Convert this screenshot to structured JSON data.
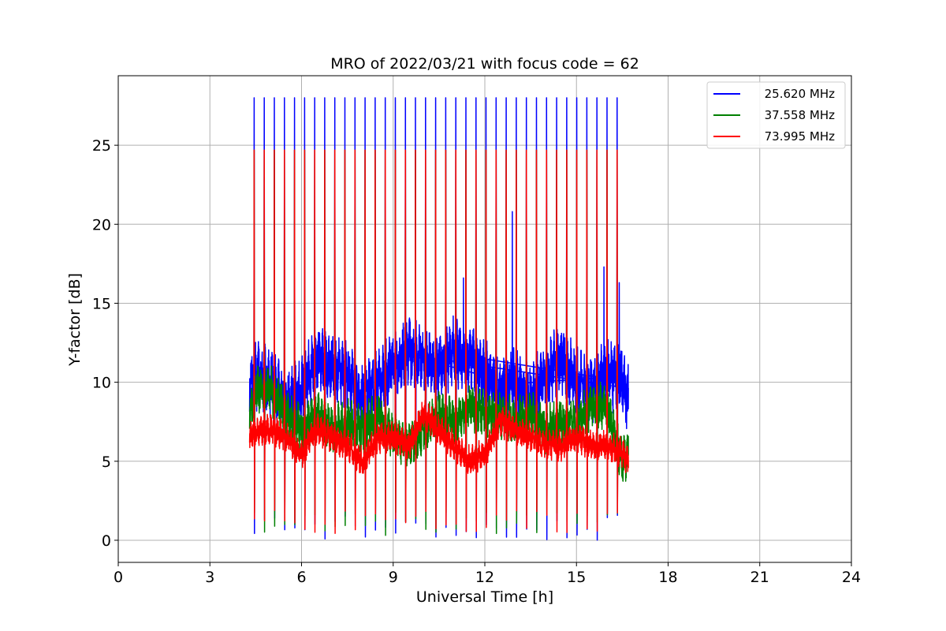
{
  "chart_data": {
    "type": "line",
    "title": "MRO of 2022/03/21 with focus code = 62",
    "xlabel": "Universal Time [h]",
    "ylabel": "Y-factor [dB]",
    "xlim": [
      0,
      24
    ],
    "ylim": [
      -1.4,
      29.4
    ],
    "xticks": [
      0,
      3,
      6,
      9,
      12,
      15,
      18,
      21,
      24
    ],
    "yticks": [
      0,
      5,
      10,
      15,
      20,
      25
    ],
    "grid": true,
    "legend_position": "top-right",
    "series": [
      {
        "name": "25.620 MHz",
        "color": "#0000ff",
        "x_range": [
          4.3,
          16.7
        ],
        "baseline": [
          [
            4.3,
            9.5
          ],
          [
            4.5,
            10.5
          ],
          [
            5.0,
            10.0
          ],
          [
            5.5,
            8.5
          ],
          [
            6.0,
            9.5
          ],
          [
            6.5,
            11.5
          ],
          [
            7.0,
            11.0
          ],
          [
            7.5,
            10.5
          ],
          [
            8.0,
            9.0
          ],
          [
            8.5,
            10.0
          ],
          [
            9.0,
            11.0
          ],
          [
            9.5,
            12.0
          ],
          [
            10.0,
            11.5
          ],
          [
            10.5,
            11.0
          ],
          [
            11.0,
            12.0
          ],
          [
            11.5,
            11.5
          ],
          [
            12.0,
            10.5
          ],
          [
            12.5,
            9.5
          ],
          [
            13.0,
            10.0
          ],
          [
            13.5,
            9.0
          ],
          [
            14.0,
            10.5
          ],
          [
            14.5,
            11.5
          ],
          [
            15.0,
            10.0
          ],
          [
            15.5,
            9.5
          ],
          [
            16.0,
            10.5
          ],
          [
            16.5,
            10.0
          ],
          [
            16.7,
            9.0
          ]
        ],
        "noise_amplitude": 2.0,
        "spike_peak": 28.0,
        "spike_min": 0.0,
        "spike_start": 4.45,
        "spike_interval": 0.33,
        "spike_count": 37,
        "extra_peaks": [
          [
            9.4,
            17.8
          ],
          [
            12.9,
            20.8
          ],
          [
            15.9,
            17.3
          ],
          [
            16.4,
            16.3
          ],
          [
            11.3,
            16.6
          ]
        ]
      },
      {
        "name": "37.558 MHz",
        "color": "#008000",
        "x_range": [
          4.3,
          16.7
        ],
        "baseline": [
          [
            4.3,
            8.0
          ],
          [
            4.5,
            9.5
          ],
          [
            5.0,
            9.5
          ],
          [
            5.5,
            8.0
          ],
          [
            6.0,
            7.0
          ],
          [
            6.5,
            8.0
          ],
          [
            7.0,
            7.0
          ],
          [
            7.5,
            7.5
          ],
          [
            8.0,
            7.0
          ],
          [
            8.5,
            8.0
          ],
          [
            9.0,
            6.5
          ],
          [
            9.5,
            6.0
          ],
          [
            10.0,
            7.0
          ],
          [
            10.5,
            8.0
          ],
          [
            11.0,
            7.5
          ],
          [
            11.5,
            8.5
          ],
          [
            12.0,
            8.0
          ],
          [
            12.5,
            8.0
          ],
          [
            13.0,
            7.5
          ],
          [
            13.5,
            8.0
          ],
          [
            14.0,
            7.0
          ],
          [
            14.5,
            7.5
          ],
          [
            15.0,
            7.5
          ],
          [
            15.5,
            8.5
          ],
          [
            16.0,
            8.5
          ],
          [
            16.5,
            5.0
          ],
          [
            16.7,
            5.5
          ]
        ],
        "noise_amplitude": 1.4,
        "spike_peak": 24.7,
        "spike_min": 0.2,
        "spike_start": 4.45,
        "spike_interval": 0.33,
        "spike_count": 37,
        "extra_peaks": []
      },
      {
        "name": "73.995 MHz",
        "color": "#ff0000",
        "x_range": [
          4.3,
          16.7
        ],
        "baseline": [
          [
            4.3,
            6.5
          ],
          [
            4.5,
            7.0
          ],
          [
            5.0,
            7.0
          ],
          [
            5.5,
            6.5
          ],
          [
            6.0,
            5.5
          ],
          [
            6.5,
            7.0
          ],
          [
            7.0,
            6.5
          ],
          [
            7.5,
            6.0
          ],
          [
            8.0,
            5.0
          ],
          [
            8.5,
            6.5
          ],
          [
            9.0,
            6.5
          ],
          [
            9.5,
            6.0
          ],
          [
            10.0,
            8.0
          ],
          [
            10.5,
            7.0
          ],
          [
            11.0,
            6.0
          ],
          [
            11.5,
            5.0
          ],
          [
            12.0,
            5.5
          ],
          [
            12.5,
            7.5
          ],
          [
            13.0,
            7.0
          ],
          [
            13.5,
            6.5
          ],
          [
            14.0,
            6.0
          ],
          [
            14.5,
            6.0
          ],
          [
            15.0,
            6.5
          ],
          [
            15.5,
            6.0
          ],
          [
            16.0,
            6.0
          ],
          [
            16.5,
            5.5
          ],
          [
            16.7,
            5.0
          ]
        ],
        "noise_amplitude": 0.9,
        "spike_peak": 24.7,
        "spike_min": 0.3,
        "spike_start": 4.45,
        "spike_interval": 0.33,
        "spike_count": 37,
        "extra_peaks": []
      }
    ]
  }
}
